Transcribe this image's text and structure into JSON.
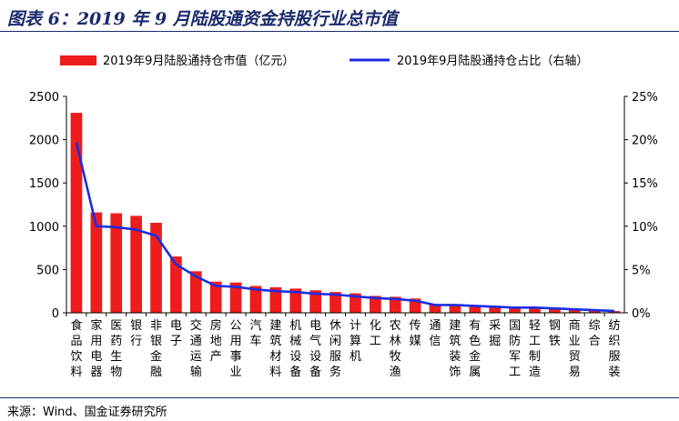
{
  "title": "图表 6：2019 年 9 月陆股通资金持股行业总市值",
  "source": "来源：Wind、国金证券研究所",
  "colors": {
    "bar": "#ee1c1c",
    "line": "#1a2ee0",
    "title": "#1a2a6c"
  },
  "chart_data": {
    "type": "bar",
    "legend_position": "top",
    "grid": false,
    "categories": [
      "食品饮料",
      "家用电器",
      "医药生物",
      "银行",
      "非银金融",
      "电子",
      "交通运输",
      "房地产",
      "公用事业",
      "汽车",
      "建筑材料",
      "机械设备",
      "电气设备",
      "休闲服务",
      "计算机",
      "化工",
      "农林牧渔",
      "传媒",
      "通信",
      "建筑装饰",
      "有色金属",
      "采掘",
      "国防军工",
      "轻工制造",
      "钢铁",
      "商业贸易",
      "综合",
      "纺织服装"
    ],
    "series": [
      {
        "name": "2019年9月陆股通持仓市值（亿元）",
        "type": "bar",
        "axis": "left",
        "values": [
          2310,
          1160,
          1150,
          1120,
          1040,
          650,
          480,
          360,
          350,
          310,
          295,
          280,
          260,
          240,
          225,
          195,
          185,
          165,
          95,
          90,
          80,
          70,
          65,
          55,
          50,
          40,
          30,
          20
        ]
      },
      {
        "name": "2019年9月陆股通持仓占比（右轴）",
        "type": "line",
        "axis": "right",
        "values": [
          19.7,
          10.0,
          9.9,
          9.6,
          8.9,
          5.6,
          4.2,
          3.1,
          3.0,
          2.7,
          2.5,
          2.4,
          2.2,
          2.1,
          1.9,
          1.7,
          1.6,
          1.4,
          0.9,
          0.9,
          0.8,
          0.7,
          0.6,
          0.6,
          0.5,
          0.4,
          0.3,
          0.2
        ]
      }
    ],
    "y_left": {
      "min": 0,
      "max": 2500,
      "ticks": [
        "0",
        "500",
        "1000",
        "1500",
        "2000",
        "2500"
      ]
    },
    "y_right": {
      "min": 0,
      "max": 25,
      "ticks": [
        "0%",
        "5%",
        "10%",
        "15%",
        "20%",
        "25%"
      ]
    }
  }
}
